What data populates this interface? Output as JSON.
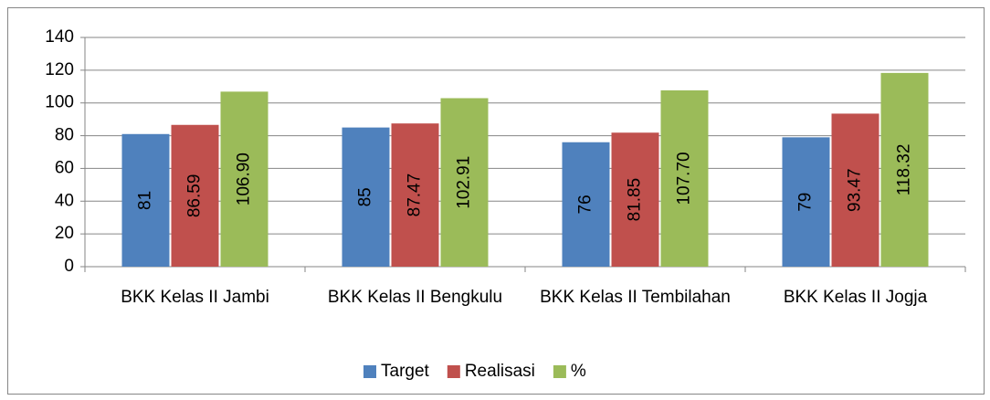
{
  "chart_data": {
    "type": "bar",
    "categories": [
      "BKK Kelas II Jambi",
      "BKK Kelas II Bengkulu",
      "BKK Kelas II Tembilahan",
      "BKK Kelas II Jogja"
    ],
    "series": [
      {
        "name": "Target",
        "color": "#4f81bd",
        "values": [
          81,
          85,
          76,
          79
        ],
        "value_labels": [
          "81",
          "85",
          "76",
          "79"
        ]
      },
      {
        "name": "Realisasi",
        "color": "#c0504d",
        "values": [
          86.59,
          87.47,
          81.85,
          93.47
        ],
        "value_labels": [
          "86.59",
          "87.47",
          "81.85",
          "93.47"
        ]
      },
      {
        "name": "%",
        "color": "#9bbb59",
        "values": [
          106.9,
          102.91,
          107.7,
          118.32
        ],
        "value_labels": [
          "106.90",
          "102.91",
          "107.70",
          "118.32"
        ]
      }
    ],
    "ylim": [
      0,
      140
    ],
    "yticks": [
      0,
      20,
      40,
      60,
      80,
      100,
      120,
      140
    ],
    "grid": true,
    "legend": "bottom"
  }
}
